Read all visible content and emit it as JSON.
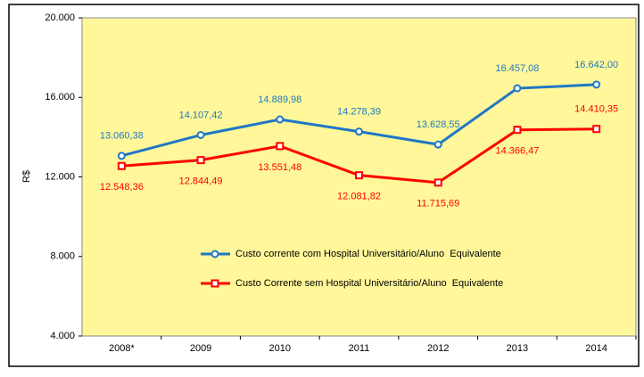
{
  "chart_data": {
    "type": "line",
    "y_label": "R$",
    "categories": [
      "2008*",
      "2009",
      "2010",
      "2011",
      "2012",
      "2013",
      "2014"
    ],
    "series": [
      {
        "name": "Custo corrente com Hospital Universitário/Aluno  Equivalente",
        "color": "#1f77c4",
        "values": [
          13060.38,
          14107.42,
          14889.98,
          14278.39,
          13628.55,
          16457.08,
          16642.0
        ],
        "value_labels": [
          "13.060,38",
          "14.107,42",
          "14.889,98",
          "14.278,39",
          "13.628,55",
          "16.457,08",
          "16.642,00"
        ]
      },
      {
        "name": "Custo Corrente sem Hospital Universitário/Aluno  Equivalente",
        "color": "#ff0000",
        "values": [
          12548.36,
          12844.49,
          13551.48,
          12081.82,
          11715.69,
          14366.47,
          14410.35
        ],
        "value_labels": [
          "12.548,36",
          "12.844,49",
          "13.551,48",
          "12.081,82",
          "11.715,69",
          "14.366,47",
          "14.410,35"
        ]
      }
    ],
    "ylim": [
      4000,
      20000
    ],
    "yticks": [
      {
        "value": 4000,
        "label": "4.000"
      },
      {
        "value": 8000,
        "label": "8.000"
      },
      {
        "value": 12000,
        "label": "12.000"
      },
      {
        "value": 16000,
        "label": "16.000"
      },
      {
        "value": 20000,
        "label": "20.000"
      }
    ],
    "plot_background": "#fff799",
    "grid": false
  }
}
